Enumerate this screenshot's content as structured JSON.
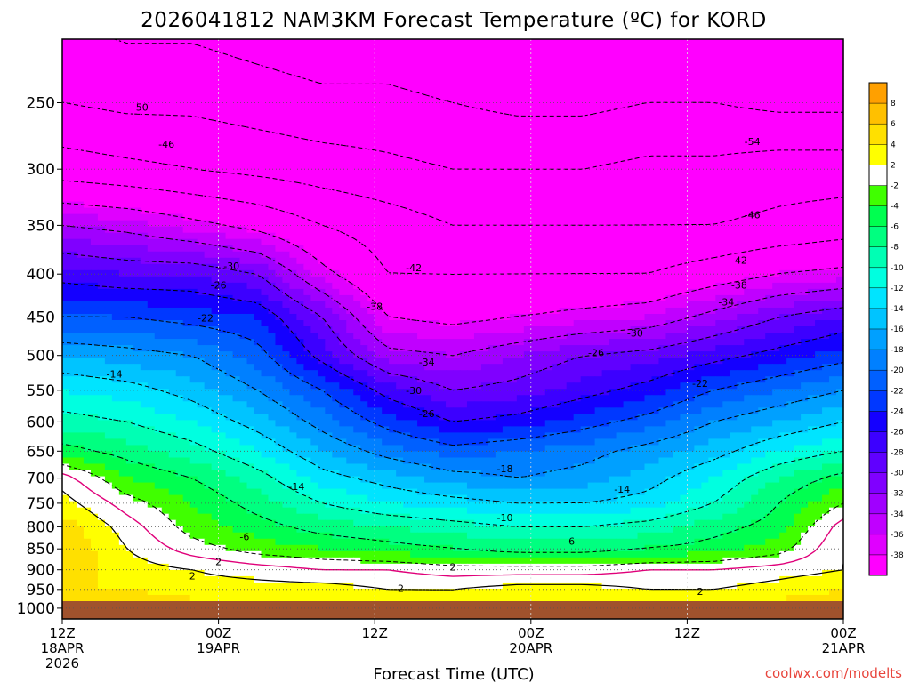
{
  "chart_data": {
    "type": "heatmap",
    "title": "2026041812 NAM3KM Forecast Temperature (ºC) for KORD",
    "xlabel": "Forecast Time (UTC)",
    "ylabel": "Pressure (hPa)",
    "credit": "coolwx.com/modelts",
    "y_ticks": [
      "250",
      "300",
      "350",
      "400",
      "450",
      "500",
      "550",
      "600",
      "650",
      "700",
      "750",
      "800",
      "850",
      "900",
      "950",
      "1000"
    ],
    "y_values": [
      250,
      300,
      350,
      400,
      450,
      500,
      550,
      600,
      650,
      700,
      750,
      800,
      850,
      900,
      950,
      1000
    ],
    "x_ticks": [
      {
        "hour": 0,
        "line1": "12Z",
        "line2": "18APR",
        "line3": "2026"
      },
      {
        "hour": 12,
        "line1": "00Z",
        "line2": "19APR",
        "line3": ""
      },
      {
        "hour": 24,
        "line1": "12Z",
        "line2": "",
        "line3": ""
      },
      {
        "hour": 36,
        "line1": "00Z",
        "line2": "20APR",
        "line3": ""
      },
      {
        "hour": 48,
        "line1": "12Z",
        "line2": "",
        "line3": ""
      },
      {
        "hour": 60,
        "line1": "00Z",
        "line2": "21APR",
        "line3": ""
      }
    ],
    "x_range_hours": [
      0,
      60
    ],
    "y_range_hpa": [
      210,
      1030
    ],
    "colorbar": {
      "levels": [
        -40,
        -38,
        -36,
        -34,
        -32,
        -30,
        -28,
        -26,
        -24,
        -22,
        -20,
        -18,
        -16,
        -14,
        -12,
        -10,
        -8,
        -6,
        -4,
        -2,
        2,
        4,
        6,
        8
      ],
      "colors": [
        "#ff00ff",
        "#e000ff",
        "#c000ff",
        "#a000ff",
        "#8000ff",
        "#6000ff",
        "#3c00ff",
        "#1400ff",
        "#0038ff",
        "#0060ff",
        "#0080ff",
        "#00a0ff",
        "#00c4ff",
        "#00e4ff",
        "#00ffe0",
        "#00ffb4",
        "#00ff80",
        "#00ff50",
        "#40ff00",
        "#ffffff",
        "#ffff00",
        "#ffe000",
        "#ffc000",
        "#ffa000"
      ]
    },
    "series": [
      {
        "name": "tempC@250hPa",
        "values": [
          -50,
          -51,
          -51,
          -52,
          -53,
          -53,
          -54,
          -55,
          -55,
          -54,
          -54,
          -55,
          -55
        ]
      },
      {
        "name": "tempC@300hPa",
        "values": [
          -44,
          -45,
          -46,
          -47,
          -48,
          -49,
          -50,
          -50,
          -50,
          -49,
          -49,
          -48,
          -48
        ]
      },
      {
        "name": "tempC@350hPa",
        "values": [
          -34,
          -35,
          -37,
          -39,
          -42,
          -44,
          -46,
          -46,
          -46,
          -46,
          -46,
          -45,
          -44
        ]
      },
      {
        "name": "tempC@400hPa",
        "values": [
          -27,
          -28,
          -28,
          -30,
          -37,
          -42,
          -42,
          -42,
          -42,
          -42,
          -40,
          -38,
          -37
        ]
      },
      {
        "name": "tempC@450hPa",
        "values": [
          -22,
          -22,
          -23,
          -24,
          -30,
          -38,
          -39,
          -38,
          -37,
          -36,
          -33,
          -30,
          -28
        ]
      },
      {
        "name": "tempC@500hPa",
        "values": [
          -16,
          -17,
          -18,
          -21,
          -27,
          -33,
          -34,
          -32,
          -30,
          -29,
          -27,
          -25,
          -23
        ]
      },
      {
        "name": "tempC@550hPa",
        "values": [
          -12,
          -13,
          -15,
          -18,
          -22,
          -27,
          -30,
          -29,
          -27,
          -25,
          -22,
          -20,
          -18
        ]
      },
      {
        "name": "tempC@600hPa",
        "values": [
          -9,
          -10,
          -12,
          -15,
          -19,
          -23,
          -26,
          -25,
          -23,
          -21,
          -18,
          -16,
          -14
        ]
      },
      {
        "name": "tempC@650hPa",
        "values": [
          -5,
          -7,
          -9,
          -12,
          -16,
          -19,
          -21,
          -20,
          -19,
          -17,
          -15,
          -12,
          -10
        ]
      },
      {
        "name": "tempC@700hPa",
        "values": [
          1,
          -4,
          -6,
          -9,
          -13,
          -15,
          -17,
          -18,
          -17,
          -15,
          -12,
          -8,
          -5
        ]
      },
      {
        "name": "tempC@750hPa",
        "values": [
          3,
          -1,
          -4,
          -7,
          -10,
          -12,
          -13,
          -14,
          -14,
          -13,
          -10,
          -6,
          -2
        ]
      },
      {
        "name": "tempC@800hPa",
        "values": [
          5,
          1,
          -3,
          -5,
          -7,
          -8,
          -9,
          -10,
          -10,
          -9,
          -7,
          -5,
          1
        ]
      },
      {
        "name": "tempC@850hPa",
        "values": [
          6,
          2,
          -1,
          -3,
          -4,
          -5,
          -6,
          -7,
          -7,
          -6,
          -5,
          -3,
          2
        ]
      },
      {
        "name": "tempC@900hPa",
        "values": [
          5,
          3,
          2,
          1,
          0,
          0,
          -1,
          -1,
          -1,
          0,
          0,
          1,
          2
        ]
      },
      {
        "name": "tempC@950hPa",
        "values": [
          4,
          4,
          3,
          3,
          3,
          2,
          2,
          3,
          3,
          2,
          2,
          3,
          4
        ]
      },
      {
        "name": "tempC@1000hPa",
        "values": [
          6,
          6,
          5,
          5,
          5,
          4,
          4,
          5,
          5,
          5,
          4,
          5,
          6
        ]
      }
    ],
    "contour_labels": [
      {
        "text": "-50",
        "hour": 6,
        "hpa": 253
      },
      {
        "text": "-46",
        "hour": 8,
        "hpa": 280
      },
      {
        "text": "-54",
        "hour": 53,
        "hpa": 278
      },
      {
        "text": "-46",
        "hour": 53,
        "hpa": 340
      },
      {
        "text": "-42",
        "hour": 52,
        "hpa": 385
      },
      {
        "text": "-30",
        "hour": 13,
        "hpa": 391
      },
      {
        "text": "-42",
        "hour": 27,
        "hpa": 393
      },
      {
        "text": "-26",
        "hour": 12,
        "hpa": 412
      },
      {
        "text": "-38",
        "hour": 52,
        "hpa": 412
      },
      {
        "text": "-38",
        "hour": 24,
        "hpa": 437
      },
      {
        "text": "-34",
        "hour": 51,
        "hpa": 432
      },
      {
        "text": "-22",
        "hour": 11,
        "hpa": 451
      },
      {
        "text": "-30",
        "hour": 44,
        "hpa": 470
      },
      {
        "text": "-26",
        "hour": 41,
        "hpa": 496
      },
      {
        "text": "-34",
        "hour": 28,
        "hpa": 509
      },
      {
        "text": "-14",
        "hour": 4,
        "hpa": 526
      },
      {
        "text": "-22",
        "hour": 49,
        "hpa": 540
      },
      {
        "text": "-30",
        "hour": 27,
        "hpa": 550
      },
      {
        "text": "-26",
        "hour": 28,
        "hpa": 586
      },
      {
        "text": "-18",
        "hour": 34,
        "hpa": 682
      },
      {
        "text": "-14",
        "hour": 18,
        "hpa": 716
      },
      {
        "text": "-14",
        "hour": 43,
        "hpa": 721
      },
      {
        "text": "-10",
        "hour": 34,
        "hpa": 780
      },
      {
        "text": "-6",
        "hour": 14,
        "hpa": 822
      },
      {
        "text": "-6",
        "hour": 39,
        "hpa": 832
      },
      {
        "text": "2",
        "hour": 12,
        "hpa": 880
      },
      {
        "text": "2",
        "hour": 30,
        "hpa": 893
      },
      {
        "text": "2",
        "hour": 10,
        "hpa": 915
      },
      {
        "text": "2",
        "hour": 26,
        "hpa": 947
      },
      {
        "text": "2",
        "hour": 49,
        "hpa": 955
      }
    ]
  }
}
